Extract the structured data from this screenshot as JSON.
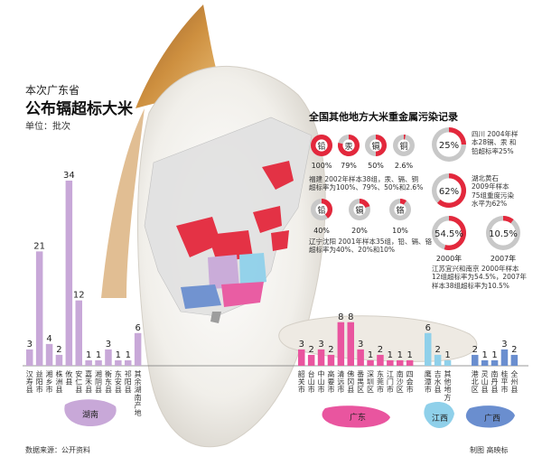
{
  "header": {
    "title_line1": "本次广东省",
    "title_line2": "公布镉超标大米",
    "unit": "单位：批次"
  },
  "colors": {
    "hunan": "#c8a8d8",
    "guangdong": "#e9559f",
    "jiangxi": "#8fd0ea",
    "guangxi": "#6a8ecf",
    "highlight_red": "#e3283c",
    "ring_gray": "#c8c8c8"
  },
  "chart_data": [
    {
      "type": "bar",
      "title": "本次广东省公布镉超标大米",
      "ylabel": "单位：批次",
      "groups": [
        {
          "name": "湖南",
          "color": "#c8a8d8",
          "categories": [
            "汉寿县",
            "益阳市",
            "湘乡市",
            "株洲县",
            "攸县",
            "安仁县",
            "嘉禾县",
            "湘阴县",
            "衡东县",
            "东安县",
            "祁阳县",
            "其余湖南产地"
          ],
          "values": [
            3,
            21,
            4,
            2,
            34,
            12,
            1,
            1,
            3,
            1,
            1,
            6
          ]
        },
        {
          "name": "广东",
          "color": "#e9559f",
          "categories": [
            "韶关市",
            "台山市",
            "中山市",
            "高要市",
            "清远市",
            "佛冈县",
            "番禺区",
            "深圳区",
            "东莞市",
            "江门市",
            "南沙区",
            "四会市"
          ],
          "values": [
            3,
            2,
            3,
            2,
            8,
            8,
            3,
            1,
            2,
            1,
            1,
            1
          ]
        },
        {
          "name": "江西",
          "color": "#8fd0ea",
          "categories": [
            "鹰潭市",
            "吉水县",
            "其他地方"
          ],
          "values": [
            6,
            2,
            1
          ]
        },
        {
          "name": "广西",
          "color": "#6a8ecf",
          "categories": [
            "港北区",
            "灵山县",
            "南丹县",
            "桂平市",
            "全州县"
          ],
          "values": [
            2,
            1,
            1,
            3,
            2
          ]
        }
      ]
    },
    {
      "type": "pie",
      "title": "全国其他地方大米重金属污染记录",
      "groups": [
        {
          "region": "福建",
          "items": [
            {
              "label": "铅",
              "percent": 100
            },
            {
              "label": "汞",
              "percent": 79
            },
            {
              "label": "镉",
              "percent": 50
            },
            {
              "label": "铜",
              "percent": 2.6
            }
          ],
          "note": "福建 2002年样本38组，汞、镉、铜超标率为100%、79%、50%和2.6%"
        },
        {
          "region": "辽宁沈阳",
          "items": [
            {
              "label": "铅",
              "percent": 40
            },
            {
              "label": "镉",
              "percent": 20
            },
            {
              "label": "铬",
              "percent": 10
            }
          ],
          "note": "辽宁沈阳 2001年样本35组，铅、镉、铬超标率为40%、20%和10%"
        },
        {
          "region": "四川",
          "items": [
            {
              "label": "25%",
              "percent": 25
            }
          ],
          "note": "四川 2004年样本28镉、汞 和铅超标率25%"
        },
        {
          "region": "湖北黄石",
          "items": [
            {
              "label": "62%",
              "percent": 62
            }
          ],
          "note": "湖北黄石 2009年样本75组重度污染水平为62%"
        },
        {
          "region": "江苏宜兴和南京",
          "items": [
            {
              "label": "54.5%",
              "percent": 54.5,
              "year": "2000年"
            },
            {
              "label": "10.5%",
              "percent": 10.5,
              "year": "2007年"
            }
          ],
          "note": "江苏宜兴和南京 2000年样本12组超标率为54.5%，2007年样本38组超标率为10.5%"
        }
      ]
    }
  ],
  "fujian": {
    "pies": [
      {
        "label": "铅",
        "value": "100%"
      },
      {
        "label": "汞",
        "value": "79%"
      },
      {
        "label": "镉",
        "value": "50%"
      },
      {
        "label": "铜",
        "value": "2.6%"
      }
    ],
    "note": [
      "福建 2002年样本38组，汞、镉、铜",
      "超标率为100%、79%、50%和2.6%"
    ]
  },
  "liaoning": {
    "pies": [
      {
        "label": "铅",
        "value": "40%"
      },
      {
        "label": "镉",
        "value": "20%"
      },
      {
        "label": "铬",
        "value": "10%"
      }
    ],
    "note": [
      "辽宁沈阳 2001年样本35组，铅、镉、铬",
      "超标率为40%、20%和10%"
    ]
  },
  "sichuan": {
    "value": "25%",
    "note": [
      "四川 2004年样",
      "本28镉、汞 和",
      "铅超标率25%"
    ]
  },
  "hubei": {
    "value": "62%",
    "note": [
      "湖北黄石",
      "2009年样本",
      "75组重度污染",
      "水平为62%"
    ]
  },
  "jiangsu": {
    "value_2000": "54.5%",
    "year_2000": "2000年",
    "value_2007": "10.5%",
    "year_2007": "2007年",
    "note": [
      "江苏宜兴和南京 2000年样本",
      "12组超标率为54.5%，2007年",
      "样本38组超标率为10.5%"
    ]
  },
  "section_title": "全国其他地方大米重金属污染记录",
  "footer": {
    "source": "数据来源：公开资料",
    "credit": "制图 高映标"
  }
}
